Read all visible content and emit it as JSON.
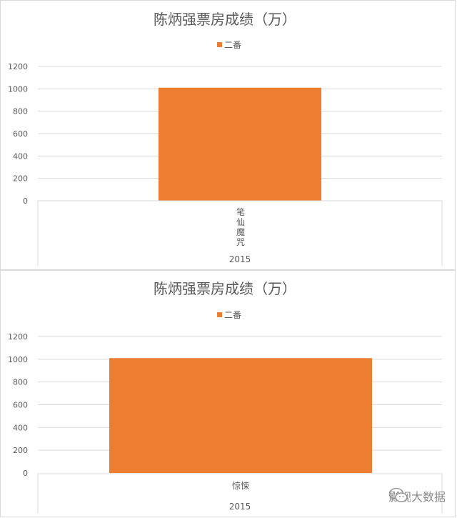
{
  "chart_data": [
    {
      "type": "bar",
      "title": "陈炳强票房成绩（万）",
      "series": [
        {
          "name": "二番",
          "values": [
            1010
          ],
          "color": "#ED7D31"
        }
      ],
      "categories": [
        "笔仙魔咒"
      ],
      "group_label": "2015",
      "category_text_vertical": true,
      "ylim": [
        0,
        1200
      ],
      "yticks": [
        0,
        200,
        400,
        600,
        800,
        1000,
        1200
      ],
      "grid": true,
      "legend_position": "top"
    },
    {
      "type": "bar",
      "title": "陈炳强票房成绩（万）",
      "series": [
        {
          "name": "二番",
          "values": [
            1010
          ],
          "color": "#ED7D31"
        }
      ],
      "categories": [
        "惊悚"
      ],
      "group_label": "2015",
      "category_text_vertical": false,
      "ylim": [
        0,
        1200
      ],
      "yticks": [
        0,
        200,
        400,
        600,
        800,
        1000,
        1200
      ],
      "grid": true,
      "legend_position": "top"
    }
  ],
  "watermark": {
    "text": "影视大数据",
    "icon": "wechat-icon"
  }
}
